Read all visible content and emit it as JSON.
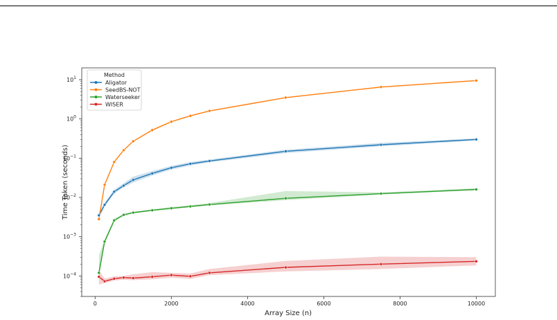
{
  "chart_data": {
    "type": "line",
    "xlabel": "Array Size (n)",
    "ylabel": "Time Taken (seconds)",
    "xlim": [
      -350,
      10500
    ],
    "ylim": [
      3e-05,
      20
    ],
    "yscale": "log",
    "xticks": [
      0,
      2000,
      4000,
      6000,
      8000,
      10000
    ],
    "xtick_labels": [
      "0",
      "2000",
      "4000",
      "6000",
      "8000",
      "10000"
    ],
    "yticks": [
      0.0001,
      0.001,
      0.01,
      0.1,
      1,
      10
    ],
    "ytick_labels": [
      {
        "base": "10",
        "exp": "−4"
      },
      {
        "base": "10",
        "exp": "−3"
      },
      {
        "base": "10",
        "exp": "−2"
      },
      {
        "base": "10",
        "exp": "−1"
      },
      {
        "base": "10",
        "exp": "0"
      },
      {
        "base": "10",
        "exp": "1"
      }
    ],
    "grid": false,
    "legend": {
      "title": "Method",
      "placement": "top-left"
    },
    "x": [
      100,
      250,
      500,
      750,
      1000,
      1500,
      2000,
      2500,
      3000,
      5000,
      7500,
      10000
    ],
    "series": [
      {
        "name": "Aligator",
        "color": "#1f77b4",
        "values": [
          0.0035,
          0.0065,
          0.014,
          0.02,
          0.028,
          0.041,
          0.057,
          0.072,
          0.085,
          0.15,
          0.22,
          0.3
        ],
        "band_low": [
          0.003,
          0.0058,
          0.0125,
          0.018,
          0.024,
          0.036,
          0.051,
          0.065,
          0.078,
          0.135,
          0.2,
          0.28
        ],
        "band_high": [
          0.0041,
          0.0073,
          0.0158,
          0.023,
          0.034,
          0.047,
          0.064,
          0.08,
          0.093,
          0.165,
          0.245,
          0.32
        ]
      },
      {
        "name": "SeedBS-NOT",
        "color": "#ff7f0e",
        "values": [
          0.0028,
          0.021,
          0.08,
          0.16,
          0.27,
          0.52,
          0.85,
          1.2,
          1.6,
          3.5,
          6.5,
          9.5
        ],
        "band_low": [
          0.0026,
          0.02,
          0.077,
          0.155,
          0.26,
          0.5,
          0.82,
          1.16,
          1.55,
          3.4,
          6.3,
          9.2
        ],
        "band_high": [
          0.003,
          0.022,
          0.083,
          0.165,
          0.28,
          0.54,
          0.88,
          1.24,
          1.65,
          3.6,
          6.7,
          9.8
        ]
      },
      {
        "name": "Waterseeker",
        "color": "#2ca02c",
        "values": [
          0.00012,
          0.00075,
          0.0026,
          0.0036,
          0.0041,
          0.0047,
          0.0053,
          0.0059,
          0.0066,
          0.0095,
          0.0125,
          0.016
        ],
        "band_low": [
          9e-05,
          0.00066,
          0.0024,
          0.0034,
          0.0039,
          0.0045,
          0.005,
          0.0056,
          0.0062,
          0.0085,
          0.0118,
          0.0152
        ],
        "band_high": [
          0.00034,
          0.00085,
          0.0029,
          0.0038,
          0.0043,
          0.005,
          0.0057,
          0.0063,
          0.0072,
          0.0145,
          0.0135,
          0.0172
        ]
      },
      {
        "name": "WISER",
        "color": "#d62728",
        "values": [
          9.5e-05,
          7.3e-05,
          8.5e-05,
          9.1e-05,
          8.8e-05,
          9.5e-05,
          0.000105,
          9.8e-05,
          0.00012,
          0.000165,
          0.0002,
          0.000235
        ],
        "band_low": [
          6e-05,
          6.6e-05,
          7.6e-05,
          8e-05,
          7.8e-05,
          8.2e-05,
          9e-05,
          8.4e-05,
          0.000105,
          0.00013,
          0.00015,
          0.000185
        ],
        "band_high": [
          0.00014,
          8.5e-05,
          9.8e-05,
          0.0001,
          0.00011,
          0.000125,
          0.00012,
          0.000115,
          0.00015,
          0.00024,
          0.00031,
          0.0003
        ]
      }
    ]
  }
}
